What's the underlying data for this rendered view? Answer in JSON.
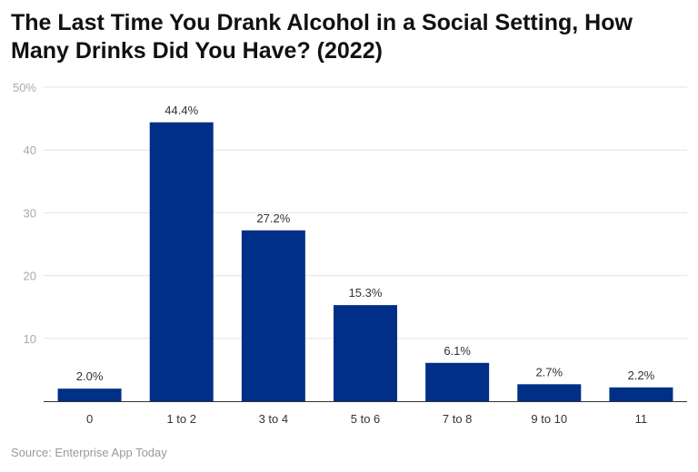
{
  "chart_data": {
    "type": "bar",
    "title": "The Last Time You Drank Alcohol in a Social Setting, How Many Drinks Did You Have? (2022)",
    "categories": [
      "0",
      "1 to 2",
      "3 to 4",
      "5 to 6",
      "7 to 8",
      "9 to 10",
      "11"
    ],
    "values": [
      2.0,
      44.4,
      27.2,
      15.3,
      6.1,
      2.7,
      2.2
    ],
    "data_labels": [
      "2.0%",
      "44.4%",
      "27.2%",
      "15.3%",
      "6.1%",
      "2.7%",
      "2.2%"
    ],
    "xlabel": "",
    "ylabel": "",
    "ylim": [
      0,
      50
    ],
    "yticks": [
      10,
      20,
      30,
      40,
      50
    ],
    "ytick_labels": [
      "10",
      "20",
      "30",
      "40",
      "50%"
    ],
    "grid": true,
    "bar_color": "#002f87",
    "source": "Source: Enterprise App Today"
  }
}
